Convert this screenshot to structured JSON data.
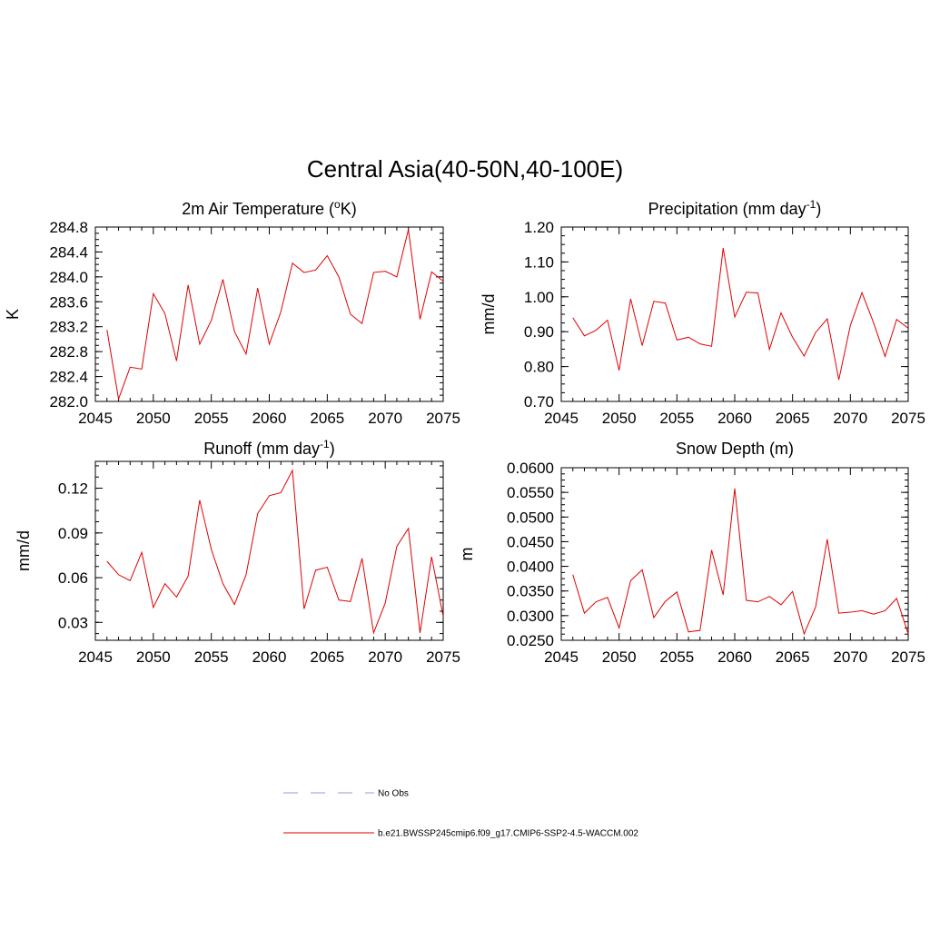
{
  "main_title": "Central Asia(40-50N,40-100E)",
  "chart_data": [
    {
      "type": "line",
      "title": "2m Air Temperature (",
      "title_sup": "o",
      "title_after": "K)",
      "xlabel": "",
      "ylabel": "K",
      "xlim": [
        2045,
        2075
      ],
      "ylim": [
        282.0,
        284.8
      ],
      "x_ticks": [
        "2045",
        "2050",
        "2055",
        "2060",
        "2065",
        "2070",
        "2075"
      ],
      "y_ticks": [
        "282.0",
        "282.4",
        "282.8",
        "283.2",
        "283.6",
        "284.0",
        "284.4",
        "284.8"
      ],
      "x": [
        2046,
        2047,
        2048,
        2049,
        2050,
        2051,
        2052,
        2053,
        2054,
        2055,
        2056,
        2057,
        2058,
        2059,
        2060,
        2061,
        2062,
        2063,
        2064,
        2065,
        2066,
        2067,
        2068,
        2069,
        2070,
        2071,
        2072,
        2073,
        2074,
        2075
      ],
      "series": [
        {
          "name": "b.e21.BWSSP245cmip6.f09_g17.CMIP6-SSP2-4.5-WACCM.002",
          "color": "#e00000",
          "values": [
            283.15,
            282.04,
            282.55,
            282.52,
            283.73,
            283.41,
            282.65,
            283.87,
            282.92,
            283.3,
            283.96,
            283.12,
            282.76,
            283.82,
            282.92,
            283.44,
            284.22,
            284.07,
            284.11,
            284.34,
            284.0,
            283.4,
            283.25,
            284.07,
            284.09,
            284.0,
            284.76,
            283.32,
            284.08,
            283.93
          ]
        }
      ]
    },
    {
      "type": "line",
      "title": "Precipitation (mm day",
      "title_sup": "-1",
      "title_after": ")",
      "xlabel": "",
      "ylabel": "mm/d",
      "xlim": [
        2045,
        2075
      ],
      "ylim": [
        0.7,
        1.2
      ],
      "x_ticks": [
        "2045",
        "2050",
        "2055",
        "2060",
        "2065",
        "2070",
        "2075"
      ],
      "y_ticks": [
        "0.70",
        "0.80",
        "0.90",
        "1.00",
        "1.10",
        "1.20"
      ],
      "x": [
        2046,
        2047,
        2048,
        2049,
        2050,
        2051,
        2052,
        2053,
        2054,
        2055,
        2056,
        2057,
        2058,
        2059,
        2060,
        2061,
        2062,
        2063,
        2064,
        2065,
        2066,
        2067,
        2068,
        2069,
        2070,
        2071,
        2072,
        2073,
        2074,
        2075
      ],
      "series": [
        {
          "name": "b.e21.BWSSP245cmip6.f09_g17.CMIP6-SSP2-4.5-WACCM.002",
          "color": "#e00000",
          "values": [
            0.94,
            0.888,
            0.904,
            0.933,
            0.789,
            0.994,
            0.86,
            0.987,
            0.982,
            0.876,
            0.884,
            0.865,
            0.858,
            1.14,
            0.942,
            1.013,
            1.011,
            0.849,
            0.954,
            0.884,
            0.83,
            0.898,
            0.937,
            0.762,
            0.918,
            1.012,
            0.926,
            0.829,
            0.935,
            0.91
          ]
        }
      ]
    },
    {
      "type": "line",
      "title": "Runoff (mm day",
      "title_sup": "-1",
      "title_after": ")",
      "xlabel": "",
      "ylabel": "mm/d",
      "xlim": [
        2045,
        2075
      ],
      "ylim": [
        0.018,
        0.138
      ],
      "x_ticks": [
        "2045",
        "2050",
        "2055",
        "2060",
        "2065",
        "2070",
        "2075"
      ],
      "y_ticks": [
        "0.03",
        "0.06",
        "0.09",
        "0.12"
      ],
      "y_tick_values": [
        0.03,
        0.06,
        0.09,
        0.12
      ],
      "x": [
        2046,
        2047,
        2048,
        2049,
        2050,
        2051,
        2052,
        2053,
        2054,
        2055,
        2056,
        2057,
        2058,
        2059,
        2060,
        2061,
        2062,
        2063,
        2064,
        2065,
        2066,
        2067,
        2068,
        2069,
        2070,
        2071,
        2072,
        2073,
        2074,
        2075
      ],
      "series": [
        {
          "name": "b.e21.BWSSP245cmip6.f09_g17.CMIP6-SSP2-4.5-WACCM.002",
          "color": "#e00000",
          "values": [
            0.071,
            0.062,
            0.058,
            0.077,
            0.04,
            0.056,
            0.047,
            0.061,
            0.112,
            0.079,
            0.056,
            0.042,
            0.062,
            0.103,
            0.115,
            0.117,
            0.132,
            0.039,
            0.065,
            0.067,
            0.045,
            0.044,
            0.073,
            0.023,
            0.043,
            0.081,
            0.093,
            0.023,
            0.074,
            0.034
          ]
        }
      ]
    },
    {
      "type": "line",
      "title": "Snow Depth (m)",
      "title_sup": "",
      "title_after": "",
      "xlabel": "",
      "ylabel": "m",
      "xlim": [
        2045,
        2075
      ],
      "ylim": [
        0.025,
        0.06
      ],
      "x_ticks": [
        "2045",
        "2050",
        "2055",
        "2060",
        "2065",
        "2070",
        "2075"
      ],
      "y_ticks": [
        "0.0250",
        "0.0300",
        "0.0350",
        "0.0400",
        "0.0450",
        "0.0500",
        "0.0550",
        "0.0600"
      ],
      "x": [
        2046,
        2047,
        2048,
        2049,
        2050,
        2051,
        2052,
        2053,
        2054,
        2055,
        2056,
        2057,
        2058,
        2059,
        2060,
        2061,
        2062,
        2063,
        2064,
        2065,
        2066,
        2067,
        2068,
        2069,
        2070,
        2071,
        2072,
        2073,
        2074,
        2075
      ],
      "series": [
        {
          "name": "b.e21.BWSSP245cmip6.f09_g17.CMIP6-SSP2-4.5-WACCM.002",
          "color": "#e00000",
          "values": [
            0.0383,
            0.0305,
            0.0328,
            0.0337,
            0.0275,
            0.0371,
            0.0393,
            0.0296,
            0.0329,
            0.0348,
            0.0267,
            0.027,
            0.0433,
            0.0342,
            0.0558,
            0.0331,
            0.0328,
            0.0339,
            0.0322,
            0.0349,
            0.0263,
            0.0318,
            0.0455,
            0.0305,
            0.0307,
            0.031,
            0.0303,
            0.031,
            0.0335,
            0.0263
          ]
        }
      ]
    }
  ],
  "legend": [
    {
      "label": "No Obs",
      "color": "#9999dd",
      "style": "dashed"
    },
    {
      "label": "b.e21.BWSSP245cmip6.f09_g17.CMIP6-SSP2-4.5-WACCM.002",
      "color": "#e00000",
      "style": "solid"
    }
  ]
}
